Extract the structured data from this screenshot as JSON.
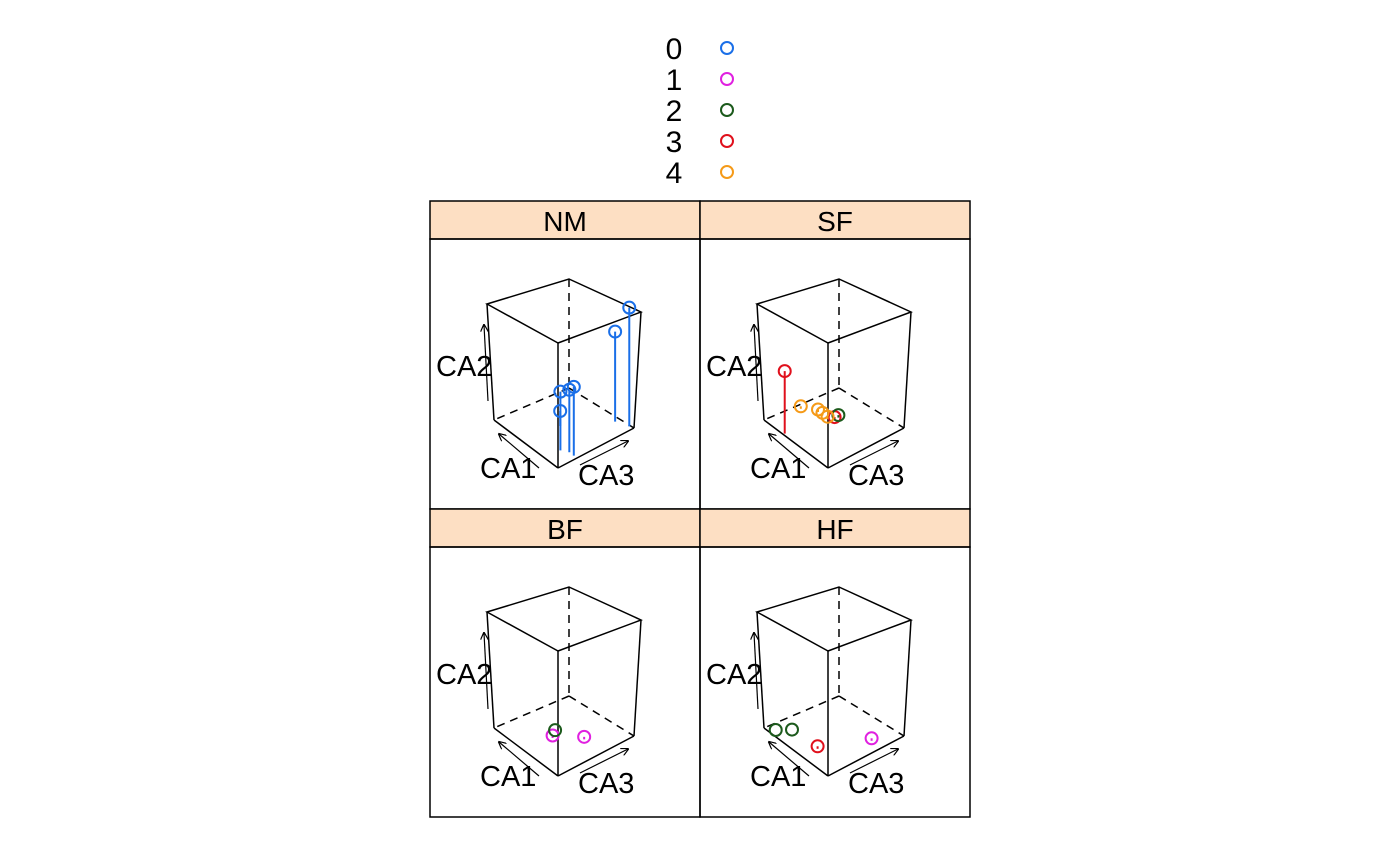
{
  "chart_data": {
    "type": "scatter3d",
    "title": "",
    "legend": {
      "placement": "top",
      "entries": [
        {
          "label": "0",
          "color": "#1a6fe8"
        },
        {
          "label": "1",
          "color": "#e020e0"
        },
        {
          "label": "2",
          "color": "#1c5a1c"
        },
        {
          "label": "3",
          "color": "#e0101c"
        },
        {
          "label": "4",
          "color": "#f59a18"
        }
      ]
    },
    "strip_color": "#fddfc3",
    "axes": {
      "x": "CA1",
      "y": "CA3",
      "z": "CA2"
    },
    "panels": [
      {
        "name": "NM",
        "points": [
          {
            "group": "0",
            "x": 0.05,
            "y": 0.25,
            "z": 0.55
          },
          {
            "group": "0",
            "x": 0.12,
            "y": 0.25,
            "z": 0.5
          },
          {
            "group": "0",
            "x": 0.2,
            "y": 0.2,
            "z": 0.47
          },
          {
            "group": "0",
            "x": 0.5,
            "y": 0.45,
            "z": 0.12
          },
          {
            "group": "0",
            "x": 0.2,
            "y": 0.92,
            "z": 0.72
          },
          {
            "group": "0",
            "x": 0.05,
            "y": 0.98,
            "z": 0.95
          }
        ]
      },
      {
        "name": "SF",
        "points": [
          {
            "group": "3",
            "x": 0.7,
            "y": 0.02,
            "z": 0.5
          },
          {
            "group": "3",
            "x": 0.55,
            "y": 0.55,
            "z": 0.02
          },
          {
            "group": "2",
            "x": 0.55,
            "y": 0.6,
            "z": 0.02
          },
          {
            "group": "4",
            "x": 0.6,
            "y": 0.5,
            "z": 0.02
          },
          {
            "group": "4",
            "x": 0.68,
            "y": 0.5,
            "z": 0.02
          },
          {
            "group": "4",
            "x": 0.75,
            "y": 0.5,
            "z": 0.02
          },
          {
            "group": "4",
            "x": 0.9,
            "y": 0.4,
            "z": 0.02
          }
        ]
      },
      {
        "name": "BF",
        "points": [
          {
            "group": "1",
            "x": 0.28,
            "y": 0.58,
            "z": 0.02
          },
          {
            "group": "1",
            "x": 0.5,
            "y": 0.35,
            "z": 0.02
          },
          {
            "group": "2",
            "x": 0.58,
            "y": 0.45,
            "z": 0.0
          }
        ]
      },
      {
        "name": "HF",
        "points": [
          {
            "group": "3",
            "x": 0.4,
            "y": 0.2,
            "z": 0.02
          },
          {
            "group": "1",
            "x": 0.15,
            "y": 0.7,
            "z": 0.02
          },
          {
            "group": "2",
            "x": 0.9,
            "y": 0.07,
            "z": 0.0
          },
          {
            "group": "2",
            "x": 0.8,
            "y": 0.2,
            "z": 0.0
          }
        ]
      }
    ]
  }
}
